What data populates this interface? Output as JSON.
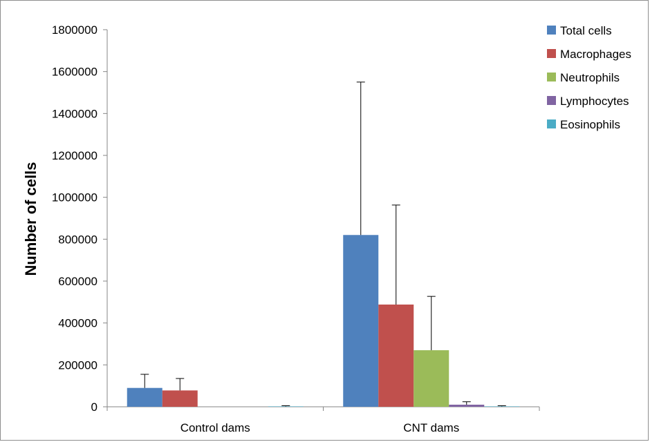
{
  "chart_data": {
    "type": "bar",
    "title": "",
    "xlabel": "",
    "ylabel": "Number of cells",
    "ylim": [
      0,
      1800000
    ],
    "yticks": [
      0,
      200000,
      400000,
      600000,
      800000,
      1000000,
      1200000,
      1400000,
      1600000,
      1800000
    ],
    "categories": [
      "Control dams",
      "CNT dams"
    ],
    "legend_position": "top-right",
    "grid": false,
    "series": [
      {
        "name": "Total cells",
        "color": "#4F81BD",
        "values": [
          90000,
          820000
        ],
        "errors": [
          65000,
          730000
        ]
      },
      {
        "name": "Macrophages",
        "color": "#C0504D",
        "values": [
          78000,
          488000
        ],
        "errors": [
          57000,
          475000
        ]
      },
      {
        "name": "Neutrophils",
        "color": "#9BBB59",
        "values": [
          0,
          270000
        ],
        "errors": [
          0,
          257000
        ]
      },
      {
        "name": "Lymphocytes",
        "color": "#8064A2",
        "values": [
          0,
          10000
        ],
        "errors": [
          0,
          14000
        ]
      },
      {
        "name": "Eosinophils",
        "color": "#4BACC6",
        "values": [
          2000,
          2000
        ],
        "errors": [
          3000,
          3000
        ]
      }
    ]
  }
}
